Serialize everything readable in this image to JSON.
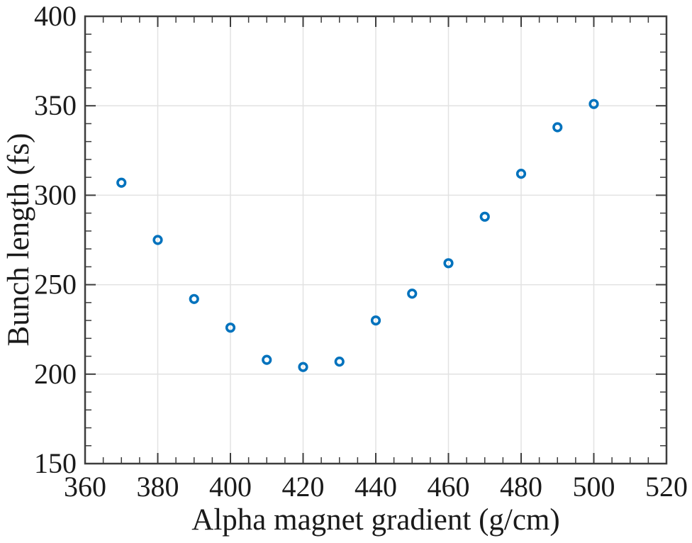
{
  "figure": {
    "background": "#ffffff",
    "marker_color": "#0072BD",
    "grid_color": "#e2e2e2",
    "axis_color": "#3d3d3d",
    "text_color": "#1a1a1a"
  },
  "chart_data": {
    "type": "scatter",
    "title": "",
    "xlabel": "Alpha magnet gradient (g/cm)",
    "ylabel": "Bunch length (fs)",
    "xlim": [
      360,
      520
    ],
    "ylim": [
      150,
      400
    ],
    "xticks": [
      360,
      380,
      400,
      420,
      440,
      460,
      480,
      500,
      520
    ],
    "yticks": [
      150,
      200,
      250,
      300,
      350,
      400
    ],
    "x_minor_step": 5,
    "y_minor_step": 10,
    "grid": "on",
    "legend": "none",
    "marker": "open-circle",
    "series": [
      {
        "name": "bunch-length",
        "x": [
          370,
          380,
          390,
          400,
          410,
          420,
          430,
          440,
          450,
          460,
          470,
          480,
          490,
          500
        ],
        "y": [
          307,
          275,
          242,
          226,
          208,
          204,
          207,
          230,
          245,
          262,
          288,
          312,
          338,
          351
        ]
      }
    ]
  }
}
